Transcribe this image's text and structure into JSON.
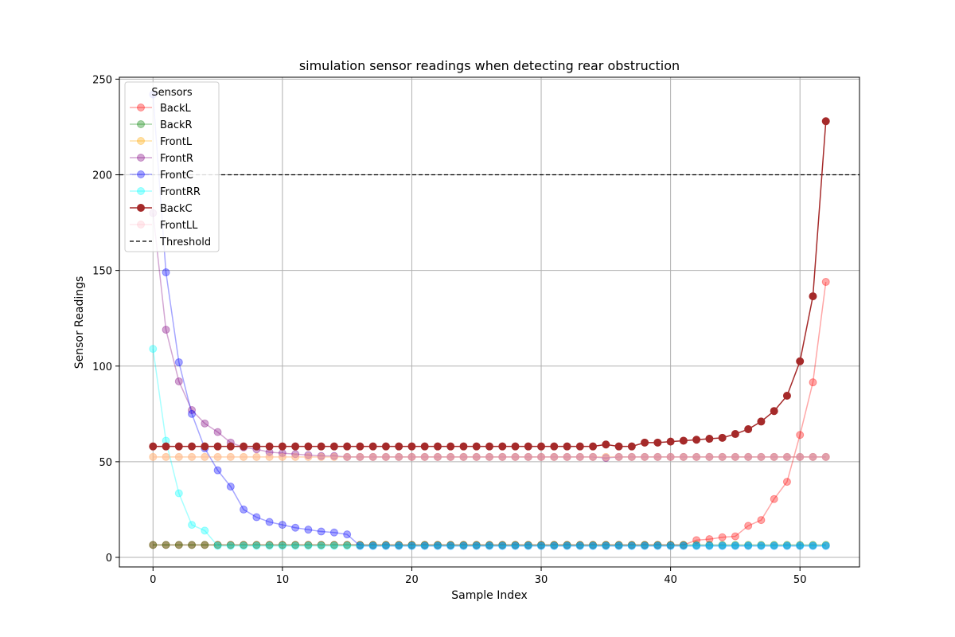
{
  "chart_data": {
    "type": "line",
    "title": "simulation sensor readings when detecting rear obstruction",
    "xlabel": "Sample Index",
    "ylabel": "Sensor Readings",
    "xlim": [
      -2.6,
      54.6
    ],
    "ylim": [
      -5,
      251
    ],
    "xticks": [
      0,
      10,
      20,
      30,
      40,
      50
    ],
    "yticks": [
      0,
      50,
      100,
      150,
      200,
      250
    ],
    "grid": true,
    "legend": {
      "title": "Sensors",
      "placement": "upper-left"
    },
    "threshold": {
      "name": "Threshold",
      "value": 200,
      "color": "#000000"
    },
    "x": [
      0,
      1,
      2,
      3,
      4,
      5,
      6,
      7,
      8,
      9,
      10,
      11,
      12,
      13,
      14,
      15,
      16,
      17,
      18,
      19,
      20,
      21,
      22,
      23,
      24,
      25,
      26,
      27,
      28,
      29,
      30,
      31,
      32,
      33,
      34,
      35,
      36,
      37,
      38,
      39,
      40,
      41,
      42,
      43,
      44,
      45,
      46,
      47,
      48,
      49,
      50,
      51,
      52
    ],
    "series": [
      {
        "name": "BackL",
        "color": "#ff0000",
        "opacity": 0.35,
        "values": [
          6.5,
          6.5,
          6.5,
          6.5,
          6.5,
          6.5,
          6.5,
          6.5,
          6.5,
          6.5,
          6.5,
          6.5,
          6.5,
          6.5,
          6.5,
          6.5,
          6.5,
          6.5,
          6.5,
          6.5,
          6.5,
          6.5,
          6.5,
          6.5,
          6.5,
          6.5,
          6.5,
          6.5,
          6.5,
          6.5,
          6.5,
          6.5,
          6.5,
          6.5,
          6.5,
          6.5,
          6.5,
          6.5,
          6.5,
          6.5,
          6.5,
          6.5,
          9,
          9.5,
          10.5,
          11,
          16.5,
          19.5,
          30.5,
          39.5,
          64,
          91.5,
          144
        ]
      },
      {
        "name": "BackR",
        "color": "#008000",
        "opacity": 0.35,
        "values": [
          6.5,
          6.5,
          6.5,
          6.5,
          6.5,
          6.5,
          6.5,
          6.5,
          6.5,
          6.5,
          6.5,
          6.5,
          6.5,
          6.5,
          6.5,
          6.5,
          6.5,
          6.5,
          6.5,
          6.5,
          6.5,
          6.5,
          6.5,
          6.5,
          6.5,
          6.5,
          6.5,
          6.5,
          6.5,
          6.5,
          6.5,
          6.5,
          6.5,
          6.5,
          6.5,
          6.5,
          6.5,
          6.5,
          6.5,
          6.5,
          6.5,
          6.5,
          6.5,
          6.5,
          6.5,
          6.5,
          6.5,
          6.5,
          6.5,
          6.5,
          6.5,
          6.5,
          6.5
        ]
      },
      {
        "name": "FrontL",
        "color": "#ffa500",
        "opacity": 0.35,
        "values": [
          52.5,
          52.5,
          52.5,
          52.5,
          52.5,
          52.5,
          52.5,
          52.5,
          52.5,
          52.5,
          52.5,
          52.5,
          52.5,
          52.5,
          52.5,
          52.5,
          52.5,
          52.5,
          52.5,
          52.5,
          52.5,
          52.5,
          52.5,
          52.5,
          52.5,
          52.5,
          52.5,
          52.5,
          52.5,
          52.5,
          52.5,
          52.5,
          52.5,
          52.5,
          52.5,
          52.5,
          52.5,
          52.5,
          52.5,
          52.5,
          52.5,
          52.5,
          52.5,
          52.5,
          52.5,
          52.5,
          52.5,
          52.5,
          52.5,
          52.5,
          52.5,
          52.5,
          52.5
        ]
      },
      {
        "name": "FrontR",
        "color": "#800080",
        "opacity": 0.35,
        "values": [
          180,
          119,
          92,
          77,
          70,
          65.5,
          60,
          57.5,
          56.5,
          55,
          54.5,
          54,
          53.5,
          53,
          53,
          52.5,
          52.5,
          52.5,
          52.5,
          52.5,
          52.5,
          52.5,
          52.5,
          52.5,
          52.5,
          52.5,
          52.5,
          52.5,
          52.5,
          52.5,
          52.5,
          52.5,
          52.5,
          52.5,
          52.5,
          52,
          52.5,
          52.5,
          52.5,
          52.5,
          52.5,
          52.5,
          52.5,
          52.5,
          52.5,
          52.5,
          52.5,
          52.5,
          52.5,
          52.5,
          52.5,
          52.5,
          52.5
        ]
      },
      {
        "name": "FrontC",
        "color": "#0000ff",
        "opacity": 0.35,
        "values": [
          242,
          149,
          102,
          75,
          57,
          45.5,
          37,
          25,
          21,
          18.5,
          17,
          15.5,
          14.5,
          13.5,
          13,
          12,
          6,
          6,
          6,
          6,
          6,
          6,
          6,
          6,
          6,
          6,
          6,
          6,
          6,
          6,
          6,
          6,
          6,
          6,
          6,
          6,
          6,
          6,
          6,
          6,
          6,
          6,
          6,
          6,
          6,
          6,
          6,
          6,
          6,
          6,
          6,
          6,
          6
        ]
      },
      {
        "name": "FrontRR",
        "color": "#00ffff",
        "opacity": 0.35,
        "values": [
          109,
          61,
          33.5,
          17,
          14,
          6,
          6,
          6,
          6,
          6,
          6,
          6,
          6,
          6,
          6,
          6,
          6,
          6,
          6,
          6,
          6,
          6,
          6,
          6,
          6,
          6,
          6,
          6,
          6,
          6,
          6,
          6,
          6,
          6,
          6,
          6,
          6,
          6,
          6,
          6,
          6,
          6,
          6,
          6,
          6,
          6,
          6,
          6,
          6,
          6,
          6,
          6,
          6
        ]
      },
      {
        "name": "BackC",
        "color": "#a52a2a",
        "opacity": 1.0,
        "values": [
          58,
          58,
          58,
          58,
          58,
          58,
          58,
          58,
          58,
          58,
          58,
          58,
          58,
          58,
          58,
          58,
          58,
          58,
          58,
          58,
          58,
          58,
          58,
          58,
          58,
          58,
          58,
          58,
          58,
          58,
          58,
          58,
          58,
          58,
          58,
          59,
          58,
          58,
          60,
          60,
          60.5,
          61,
          61.5,
          62,
          62.5,
          64.5,
          67,
          71,
          76.5,
          84.5,
          102.5,
          136.5,
          228
        ]
      },
      {
        "name": "FrontLL",
        "color": "#ffc0cb",
        "opacity": 0.35,
        "values": [
          52.5,
          52.5,
          52.5,
          52.5,
          52.5,
          52.5,
          52.5,
          52.5,
          52.5,
          52.5,
          52.5,
          52.5,
          52.5,
          52.5,
          52.5,
          52.5,
          52.5,
          52.5,
          52.5,
          52.5,
          52.5,
          52.5,
          52.5,
          52.5,
          52.5,
          52.5,
          52.5,
          52.5,
          52.5,
          52.5,
          52.5,
          52.5,
          52.5,
          52.5,
          52.5,
          52.5,
          52.5,
          52.5,
          52.5,
          52.5,
          52.5,
          52.5,
          52.5,
          52.5,
          52.5,
          52.5,
          52.5,
          52.5,
          52.5,
          52.5,
          52.5,
          52.5,
          52.5
        ]
      }
    ]
  }
}
